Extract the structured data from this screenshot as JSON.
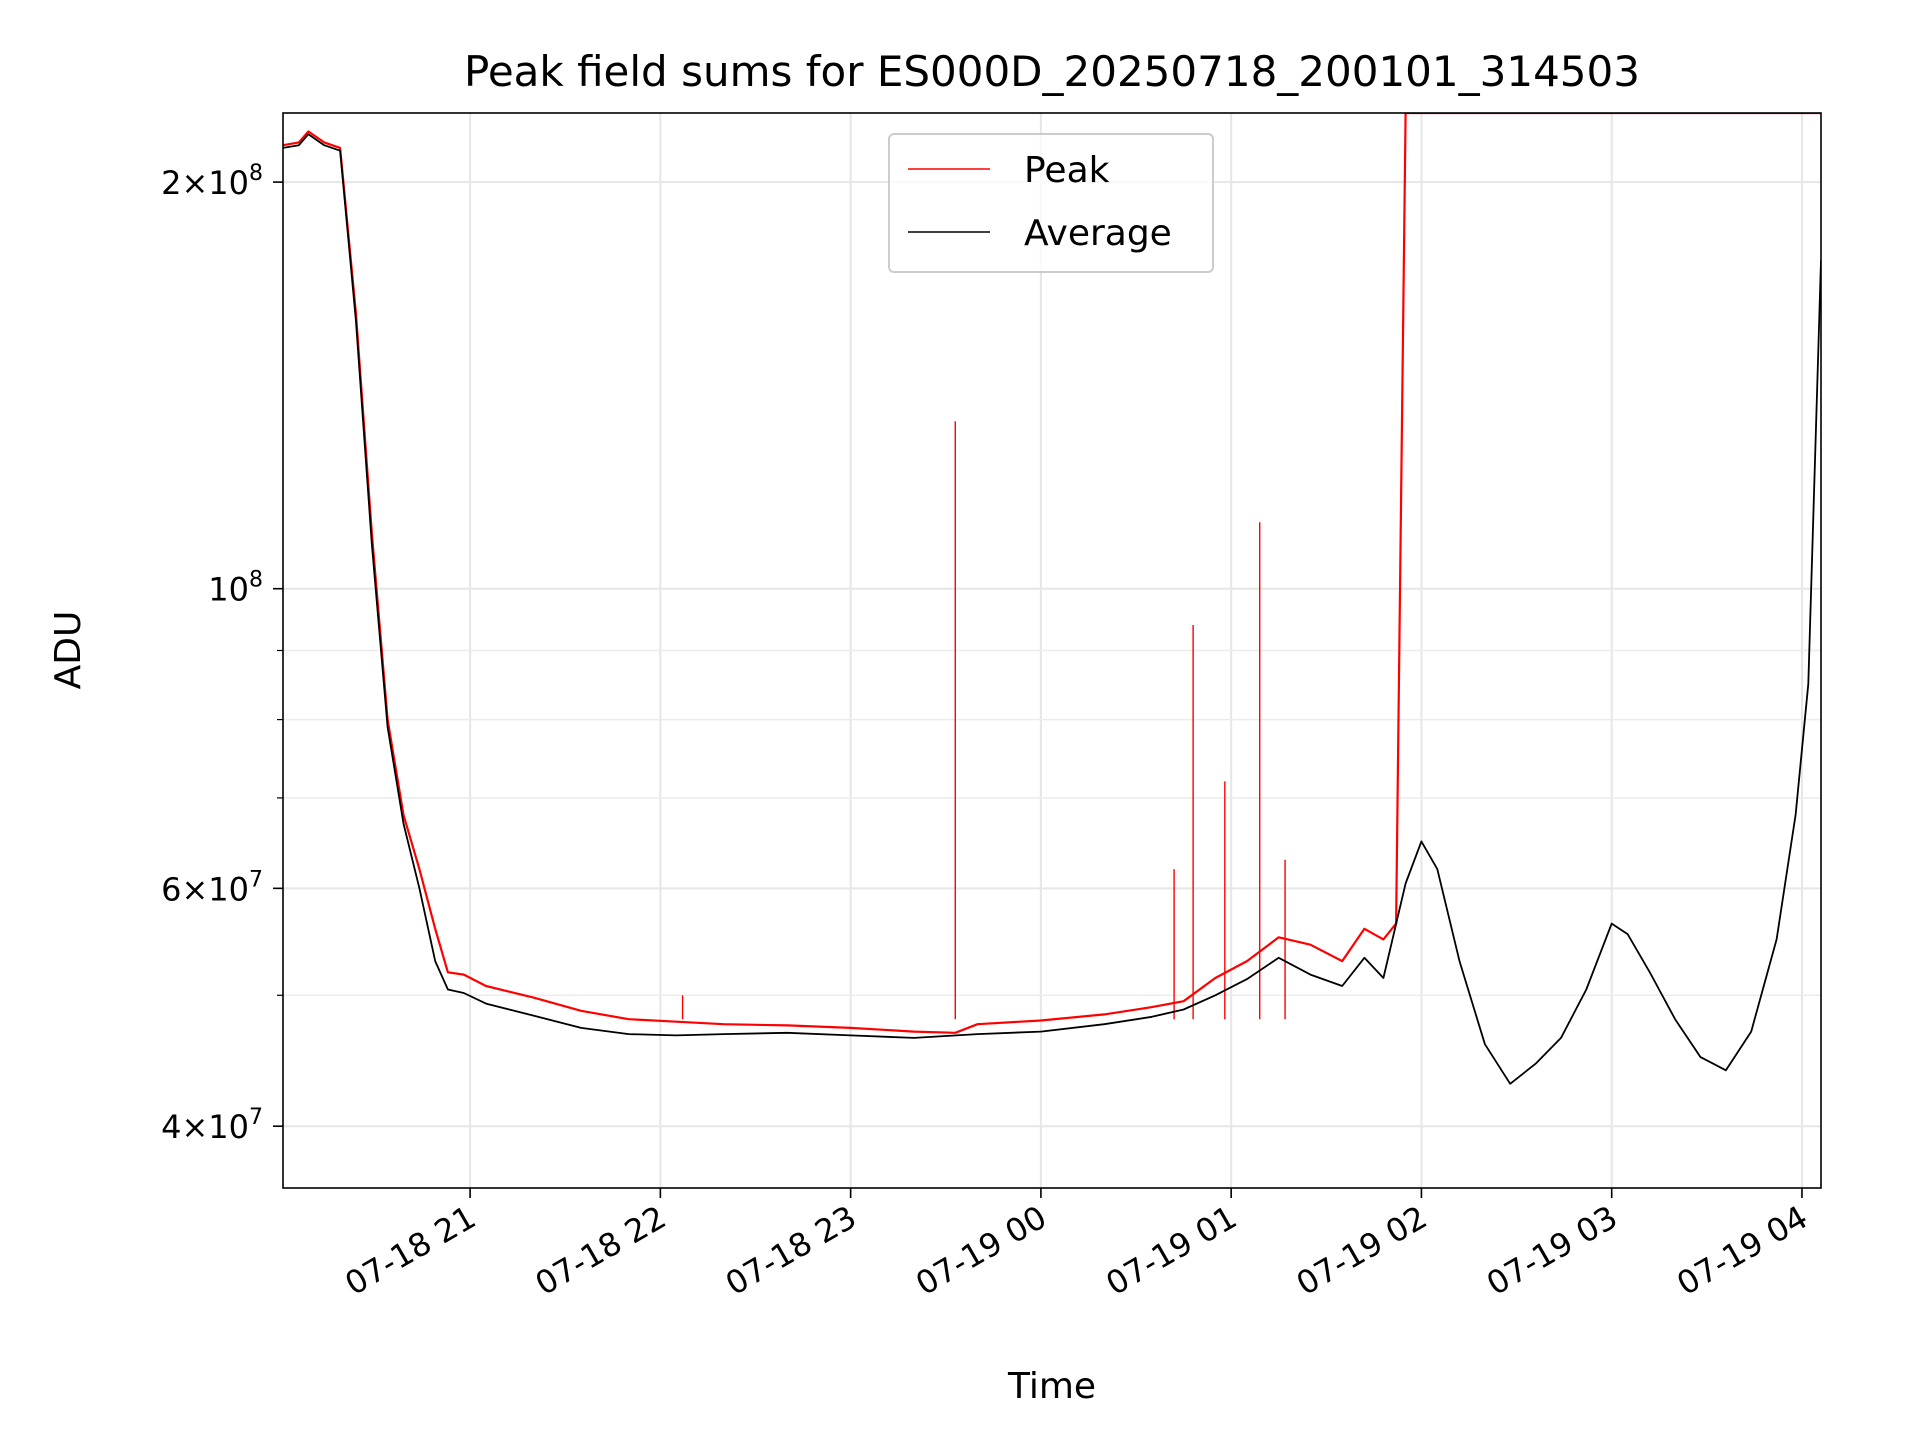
{
  "chart_data": {
    "type": "line",
    "title": "Peak field sums for ES000D_20250718_200101_314503",
    "xlabel": "Time",
    "ylabel": "ADU",
    "yscale": "log",
    "ylim": [
      36000000,
      225000000
    ],
    "xlim": [
      "07-18 20:01",
      "07-19 04:06"
    ],
    "grid": true,
    "legend_position": "upper center",
    "x_ticks": [
      {
        "t": "07-18 21:00",
        "label": "07-18 21"
      },
      {
        "t": "07-18 22:00",
        "label": "07-18 22"
      },
      {
        "t": "07-18 23:00",
        "label": "07-18 23"
      },
      {
        "t": "07-19 00:00",
        "label": "07-19 00"
      },
      {
        "t": "07-19 01:00",
        "label": "07-19 01"
      },
      {
        "t": "07-19 02:00",
        "label": "07-19 02"
      },
      {
        "t": "07-19 03:00",
        "label": "07-19 03"
      },
      {
        "t": "07-19 04:00",
        "label": "07-19 04"
      }
    ],
    "y_major_ticks": [
      {
        "value": 40000000,
        "label_mantissa": "4",
        "label_exp": "7"
      },
      {
        "value": 60000000,
        "label_mantissa": "6",
        "label_exp": "7"
      },
      {
        "value": 100000000,
        "label_mantissa": "",
        "label_exp": "8"
      },
      {
        "value": 200000000,
        "label_mantissa": "2",
        "label_exp": "8"
      }
    ],
    "y_minor_ticks": [
      50000000,
      70000000,
      80000000,
      90000000
    ],
    "series": [
      {
        "name": "Peak",
        "color": "#ff0000",
        "x": [
          "07-18 20:01",
          "07-18 20:06",
          "07-18 20:09",
          "07-18 20:14",
          "07-18 20:19",
          "07-18 20:24",
          "07-18 20:29",
          "07-18 20:34",
          "07-18 20:39",
          "07-18 20:44",
          "07-18 20:49",
          "07-18 20:53",
          "07-18 20:58",
          "07-18 21:05",
          "07-18 21:20",
          "07-18 21:35",
          "07-18 21:50",
          "07-18 22:05",
          "07-18 22:20",
          "07-18 22:40",
          "07-18 23:00",
          "07-18 23:20",
          "07-18 23:33",
          "07-18 23:40",
          "07-19 00:00",
          "07-19 00:20",
          "07-19 00:35",
          "07-19 00:45",
          "07-19 00:55",
          "07-19 01:05",
          "07-19 01:15",
          "07-19 01:25",
          "07-19 01:35",
          "07-19 01:42",
          "07-19 01:48",
          "07-19 01:52",
          "07-19 01:55",
          "07-19 02:05",
          "07-19 02:15",
          "07-19 02:25",
          "07-19 02:35",
          "07-19 02:45",
          "07-19 02:55",
          "07-19 03:05",
          "07-19 03:15",
          "07-19 03:25",
          "07-19 03:35",
          "07-19 03:45",
          "07-19 03:55",
          "07-19 04:06"
        ],
        "y": [
          213000000,
          214000000,
          218000000,
          214000000,
          212000000,
          160000000,
          110000000,
          80000000,
          68000000,
          62000000,
          56000000,
          52000000,
          51800000,
          50800000,
          49800000,
          48700000,
          48000000,
          47800000,
          47600000,
          47500000,
          47300000,
          47000000,
          46900000,
          47600000,
          47900000,
          48400000,
          49000000,
          49500000,
          51500000,
          53000000,
          55200000,
          54500000,
          53000000,
          56000000,
          55000000,
          56500000,
          225000000,
          225000000,
          225000000,
          225000000,
          225000000,
          225000000,
          225000000,
          225000000,
          225000000,
          225000000,
          225000000,
          225000000,
          225000000,
          225000000
        ],
        "spikes": [
          {
            "x": "07-18 22:07",
            "y": 50000000
          },
          {
            "x": "07-18 23:33",
            "y": 133000000
          },
          {
            "x": "07-19 00:42",
            "y": 62000000
          },
          {
            "x": "07-19 00:48",
            "y": 94000000
          },
          {
            "x": "07-19 00:58",
            "y": 72000000
          },
          {
            "x": "07-19 01:09",
            "y": 112000000
          },
          {
            "x": "07-19 01:17",
            "y": 63000000
          }
        ]
      },
      {
        "name": "Average",
        "color": "#000000",
        "x": [
          "07-18 20:01",
          "07-18 20:06",
          "07-18 20:09",
          "07-18 20:14",
          "07-18 20:19",
          "07-18 20:24",
          "07-18 20:29",
          "07-18 20:34",
          "07-18 20:39",
          "07-18 20:44",
          "07-18 20:49",
          "07-18 20:53",
          "07-18 20:58",
          "07-18 21:05",
          "07-18 21:20",
          "07-18 21:35",
          "07-18 21:50",
          "07-18 22:05",
          "07-18 22:20",
          "07-18 22:40",
          "07-18 23:00",
          "07-18 23:20",
          "07-18 23:40",
          "07-19 00:00",
          "07-19 00:20",
          "07-19 00:35",
          "07-19 00:45",
          "07-19 00:55",
          "07-19 01:05",
          "07-19 01:15",
          "07-19 01:25",
          "07-19 01:35",
          "07-19 01:42",
          "07-19 01:48",
          "07-19 01:55",
          "07-19 02:00",
          "07-19 02:05",
          "07-19 02:12",
          "07-19 02:20",
          "07-19 02:28",
          "07-19 02:36",
          "07-19 02:44",
          "07-19 02:52",
          "07-19 03:00",
          "07-19 03:05",
          "07-19 03:12",
          "07-19 03:20",
          "07-19 03:28",
          "07-19 03:36",
          "07-19 03:44",
          "07-19 03:52",
          "07-19 03:58",
          "07-19 04:02",
          "07-19 04:06"
        ],
        "y": [
          212000000,
          213000000,
          217000000,
          213000000,
          211000000,
          158000000,
          108000000,
          79000000,
          67000000,
          60000000,
          53000000,
          50500000,
          50200000,
          49300000,
          48300000,
          47300000,
          46800000,
          46700000,
          46800000,
          46900000,
          46700000,
          46500000,
          46800000,
          47000000,
          47600000,
          48200000,
          48800000,
          50000000,
          51400000,
          53300000,
          51800000,
          50800000,
          53300000,
          51500000,
          60500000,
          65000000,
          62000000,
          53000000,
          46000000,
          43000000,
          44500000,
          46500000,
          50500000,
          56500000,
          55500000,
          52000000,
          48000000,
          45000000,
          44000000,
          47000000,
          55000000,
          68000000,
          85000000,
          175000000
        ]
      }
    ]
  }
}
